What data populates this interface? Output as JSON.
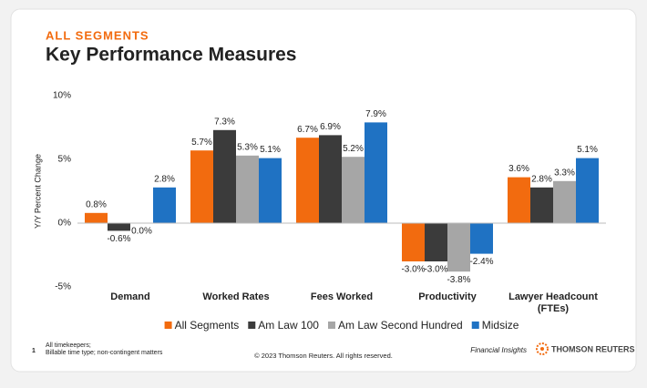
{
  "chart_data": {
    "type": "bar",
    "subtitle": "ALL SEGMENTS",
    "title": "Key Performance Measures",
    "y_label": "Y/Y Percent Change",
    "categories": [
      "Demand",
      "Worked Rates",
      "Fees Worked",
      "Productivity",
      "Lawyer Headcount (FTEs)"
    ],
    "series": [
      {
        "name": "All Segments",
        "color": "#f26b0f",
        "values": [
          0.8,
          5.7,
          6.7,
          -3.0,
          3.6
        ],
        "value_labels": [
          "0.8%",
          "5.7%",
          "6.7%",
          "-3.0%",
          "3.6%"
        ]
      },
      {
        "name": "Am Law 100",
        "color": "#3b3b3b",
        "values": [
          -0.6,
          7.3,
          6.9,
          -3.0,
          2.8
        ],
        "value_labels": [
          "-0.6%",
          "7.3%",
          "6.9%",
          "-3.0%",
          "2.8%"
        ]
      },
      {
        "name": "Am Law Second Hundred",
        "color": "#a6a6a6",
        "values": [
          0.0,
          5.3,
          5.2,
          -3.8,
          3.3
        ],
        "value_labels": [
          "0.0%",
          "5.3%",
          "5.2%",
          "-3.8%",
          "3.3%"
        ]
      },
      {
        "name": "Midsize",
        "color": "#1f72c3",
        "values": [
          2.8,
          5.1,
          7.9,
          -2.4,
          5.1
        ],
        "value_labels": [
          "2.8%",
          "5.1%",
          "7.9%",
          "-2.4%",
          "5.1%"
        ]
      }
    ],
    "ylim": [
      -5,
      10
    ],
    "yticks": [
      {
        "value": 10,
        "label": "10%"
      },
      {
        "value": 5,
        "label": "5%"
      },
      {
        "value": 0,
        "label": "0%"
      },
      {
        "value": -5,
        "label": "-5%"
      }
    ],
    "grid": false,
    "legend": "bottom"
  },
  "footer": {
    "note_number": "1",
    "notes": [
      "All timekeepers;",
      "Billable time type; non-contingent matters"
    ],
    "copyright": "© 2023 Thomson Reuters. All rights reserved.",
    "tagline": "Financial Insights",
    "brand": "THOMSON REUTERS"
  }
}
